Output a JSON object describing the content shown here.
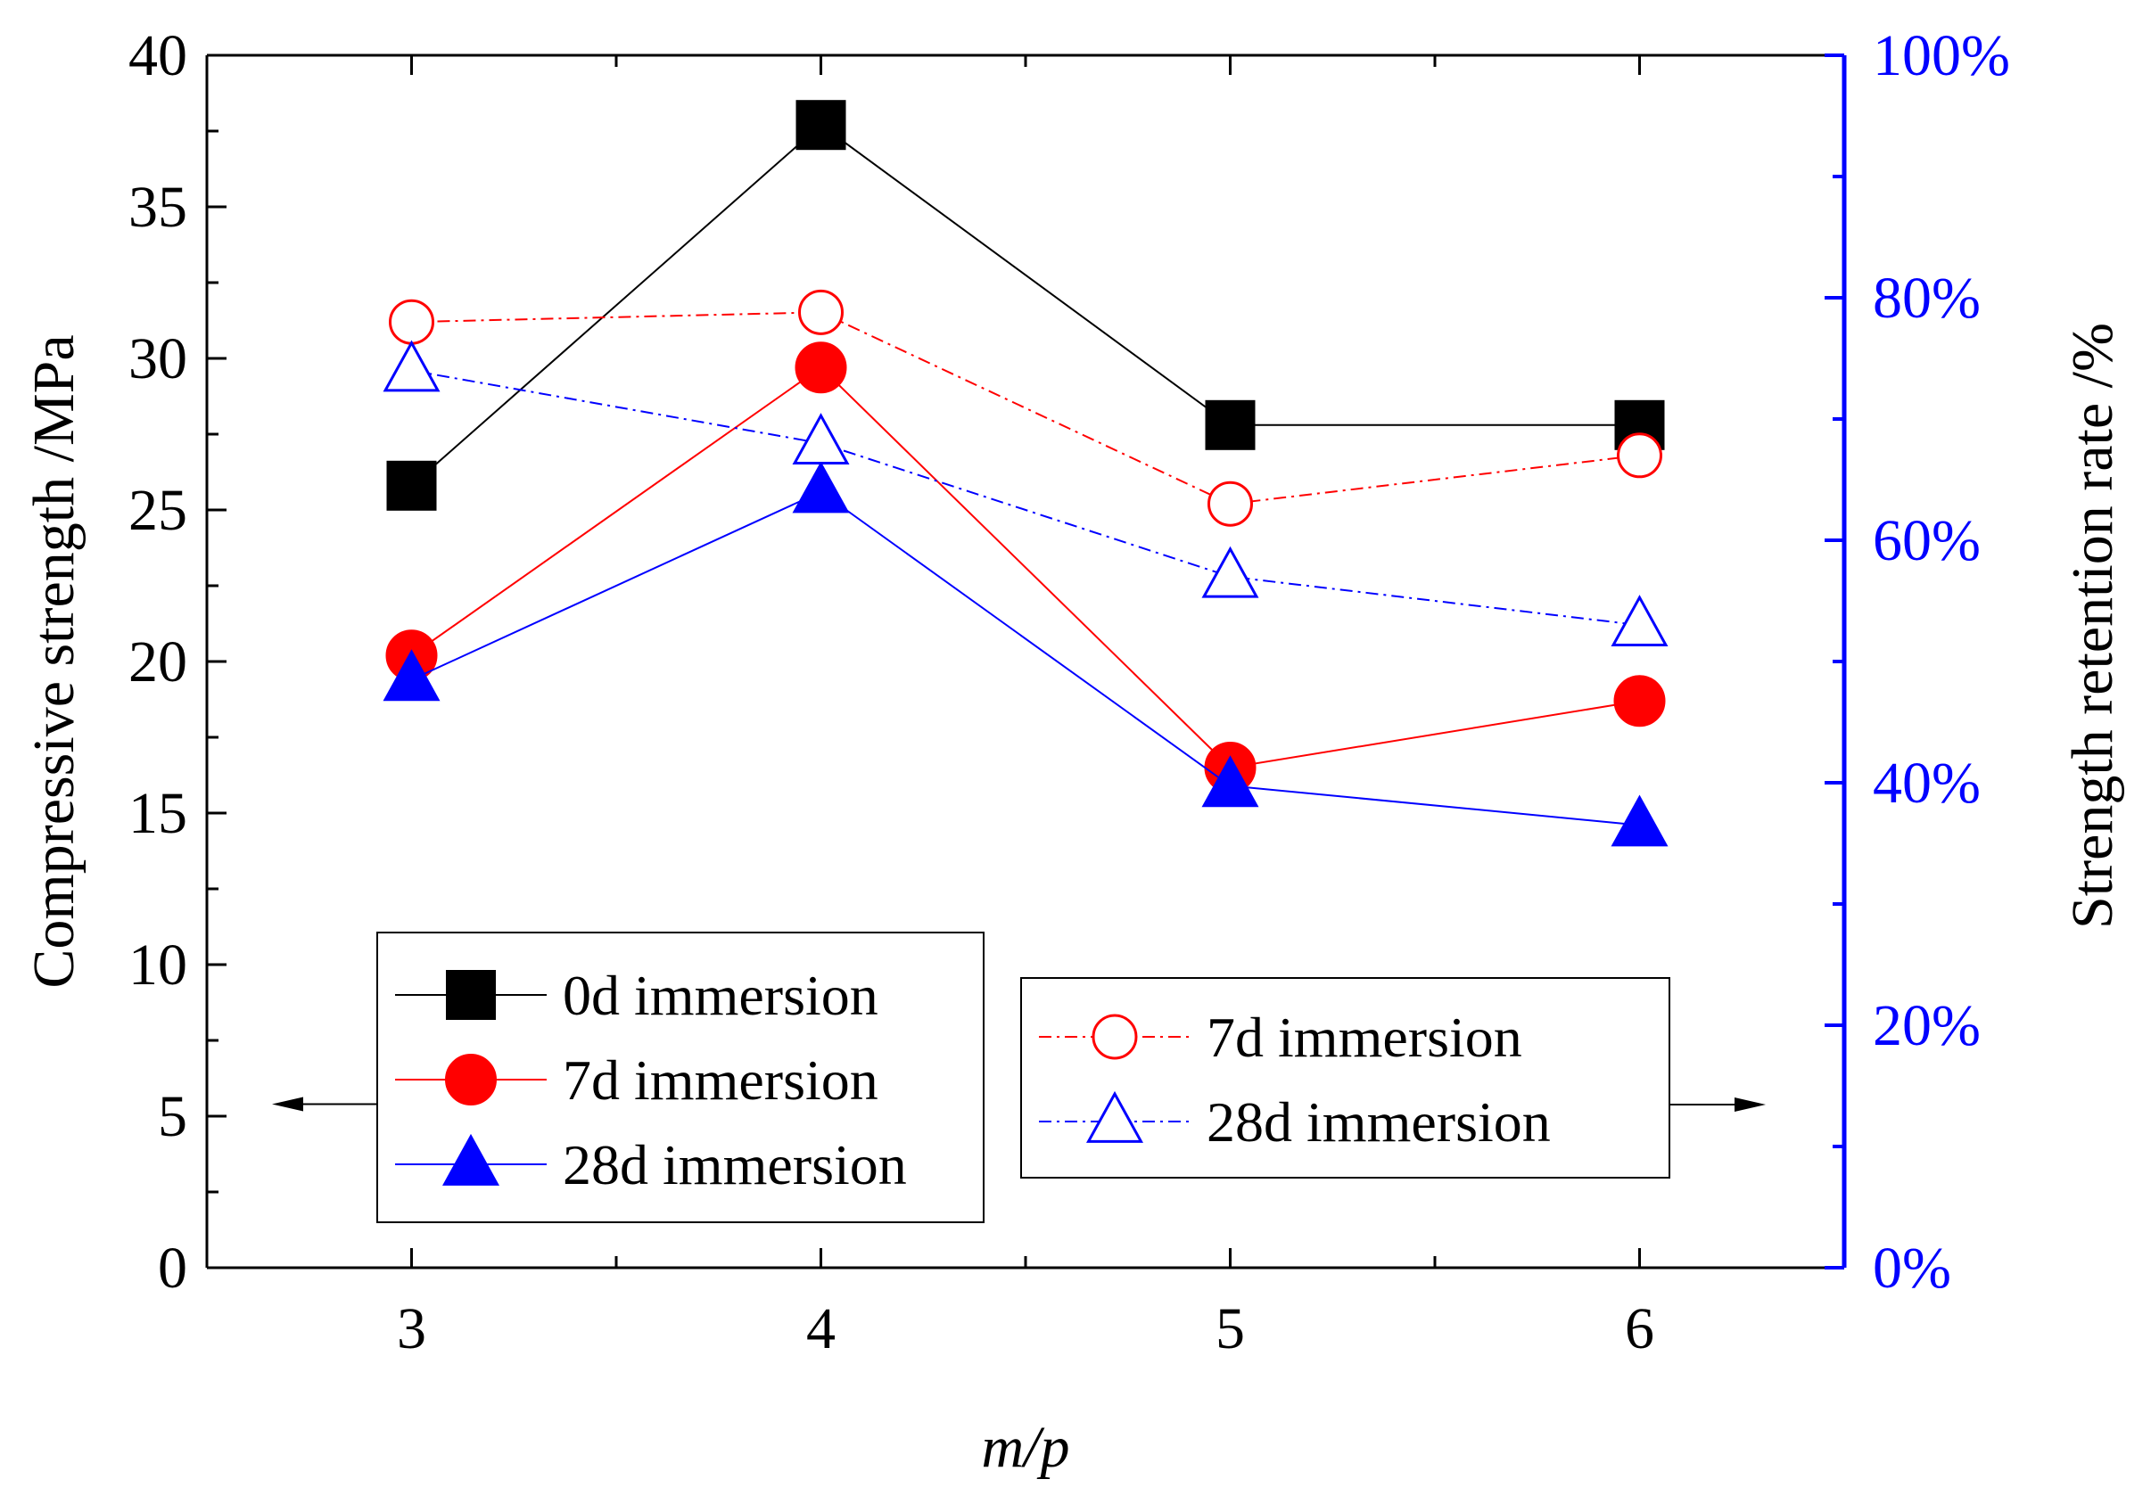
{
  "chart_data": {
    "type": "line",
    "x_categories": [
      "3",
      "4",
      "5",
      "6"
    ],
    "x": [
      3,
      4,
      5,
      6
    ],
    "xlabel": "m/p",
    "xlim": [
      2.5,
      6.5
    ],
    "ylabel_left": "Compressive strength /MPa",
    "ylim_left": [
      0,
      40
    ],
    "yticks_left": [
      "0",
      "5",
      "10",
      "15",
      "20",
      "25",
      "30",
      "35",
      "40"
    ],
    "ylabel_right": "Strength retention rate /%",
    "ylim_right": [
      0,
      100
    ],
    "yticks_right": [
      "0%",
      "20%",
      "40%",
      "60%",
      "80%",
      "100%"
    ],
    "right_axis_color": "#0000ff",
    "grid": false,
    "series": [
      {
        "name": "0d immersion",
        "axis": "left",
        "marker": "square-filled",
        "line": "solid",
        "color": "#000000",
        "values": [
          25.8,
          37.7,
          27.8,
          27.8
        ]
      },
      {
        "name": "7d immersion",
        "axis": "left",
        "marker": "circle-filled",
        "line": "solid",
        "color": "#ff0000",
        "values": [
          20.2,
          29.7,
          16.5,
          18.7
        ]
      },
      {
        "name": "28d immersion",
        "axis": "left",
        "marker": "triangle-filled",
        "line": "solid",
        "color": "#0000ff",
        "values": [
          19.4,
          25.6,
          15.9,
          14.6
        ]
      },
      {
        "name": "7d immersion",
        "axis": "right",
        "marker": "circle-open",
        "line": "dash-dot",
        "color": "#ff0000",
        "values": [
          78.0,
          78.8,
          63.0,
          67.0
        ]
      },
      {
        "name": "28d immersion",
        "axis": "right",
        "marker": "triangle-open",
        "line": "dash-dot",
        "color": "#0000ff",
        "values": [
          74.0,
          68.0,
          57.0,
          53.0
        ]
      }
    ],
    "legends": [
      {
        "placement": "bottom-left",
        "arrow": "left",
        "entries": [
          "0d immersion",
          "7d immersion",
          "28d immersion"
        ]
      },
      {
        "placement": "bottom-right",
        "arrow": "right",
        "entries": [
          "7d immersion",
          "28d immersion"
        ]
      }
    ]
  }
}
